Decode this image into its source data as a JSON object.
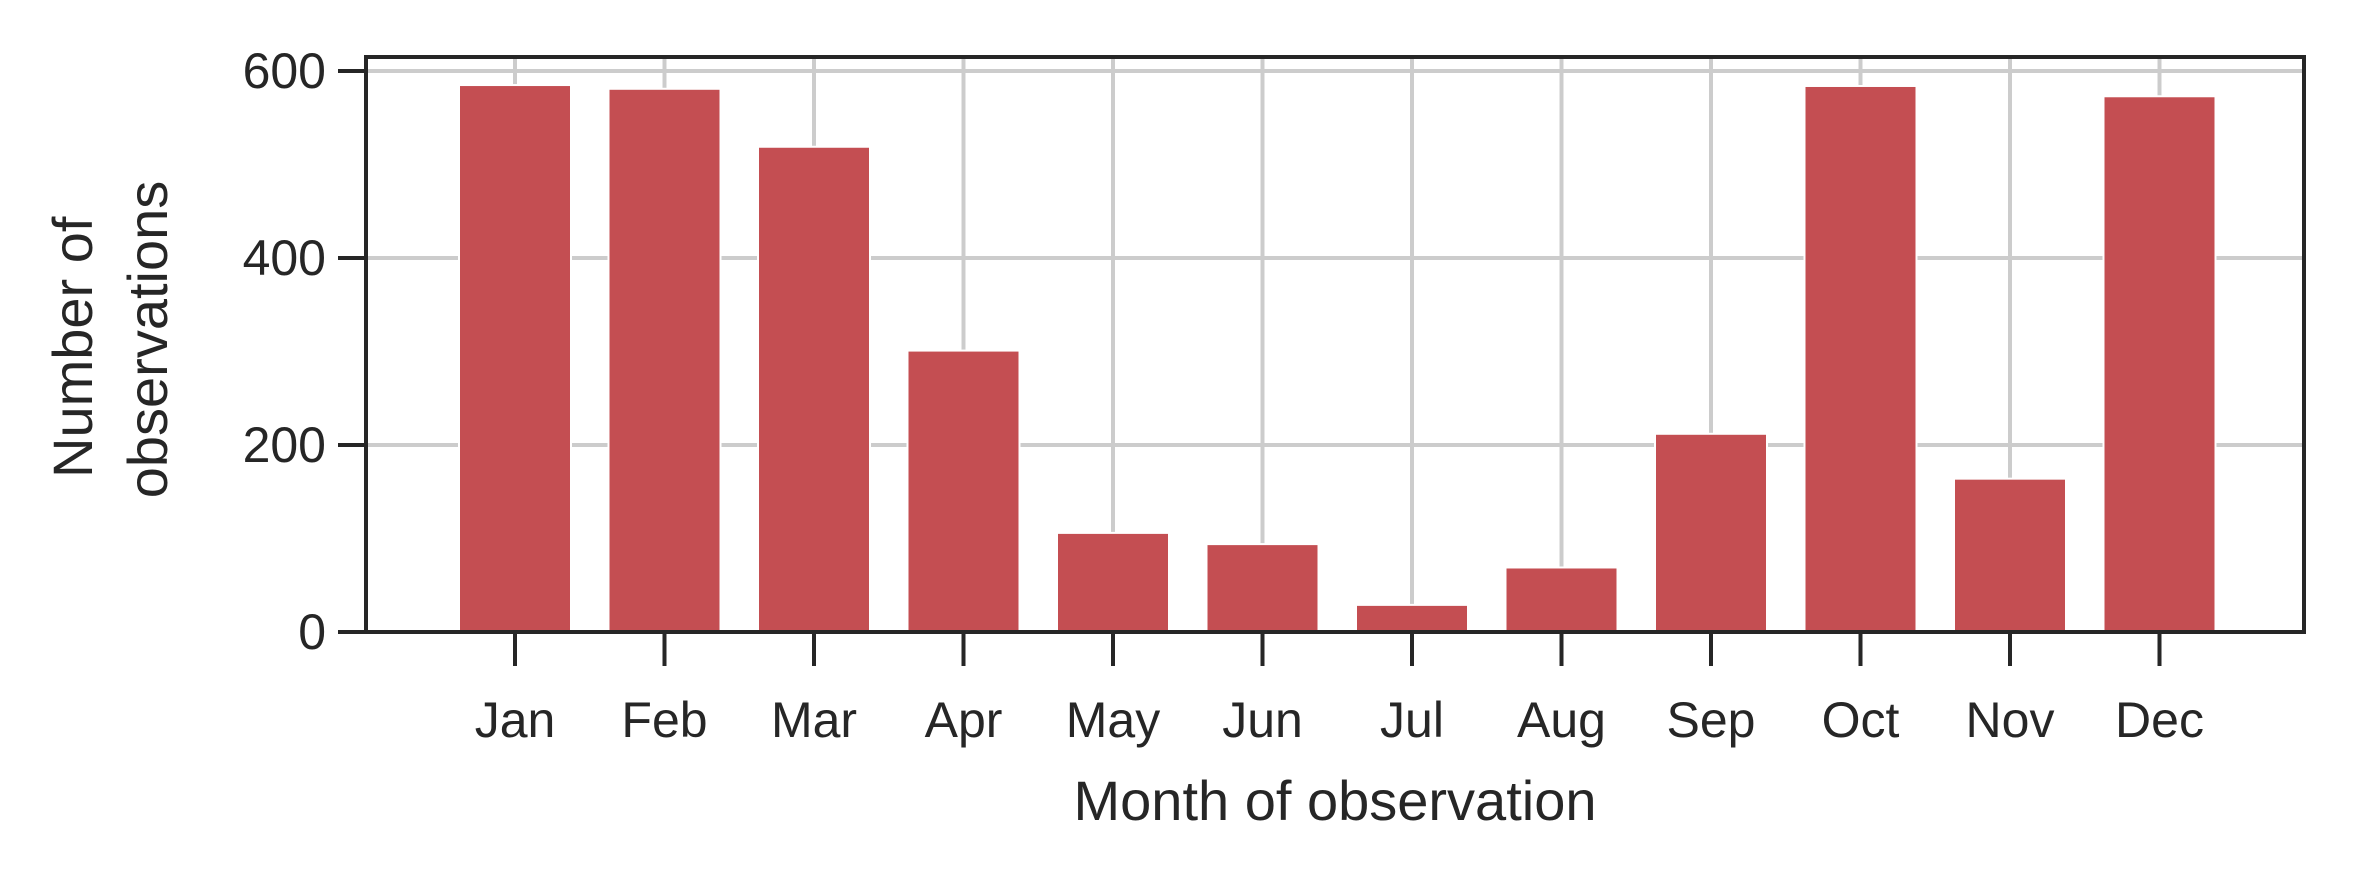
{
  "chart_data": {
    "type": "bar",
    "title": "",
    "xlabel": "Month of observation",
    "ylabel_lines": [
      "Number of",
      "observations"
    ],
    "categories": [
      "Jan",
      "Feb",
      "Mar",
      "Apr",
      "May",
      "Jun",
      "Jul",
      "Aug",
      "Sep",
      "Oct",
      "Nov",
      "Dec"
    ],
    "values": [
      585,
      581,
      519,
      301,
      106,
      94,
      29,
      69,
      212,
      584,
      164,
      573
    ],
    "ylim": [
      0,
      615
    ],
    "yticks": [
      0,
      200,
      400,
      600
    ],
    "grid": true,
    "legend": "none",
    "bar_color": "#c44e52",
    "grid_color": "#cccccc",
    "axis_color": "#262626"
  }
}
